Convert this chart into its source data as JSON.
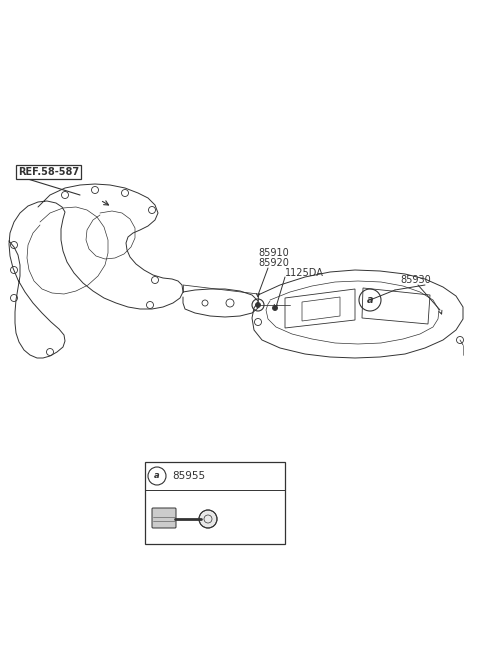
{
  "bg_color": "#ffffff",
  "fig_width": 4.8,
  "fig_height": 6.56,
  "dpi": 100,
  "labels": {
    "ref": "REF.58-587",
    "part1a": "85910",
    "part1b": "85920",
    "part2": "1125DA",
    "part3": "85930",
    "part4": "85955",
    "circle_a": "a"
  },
  "line_color": "#333333",
  "lw": 0.7
}
